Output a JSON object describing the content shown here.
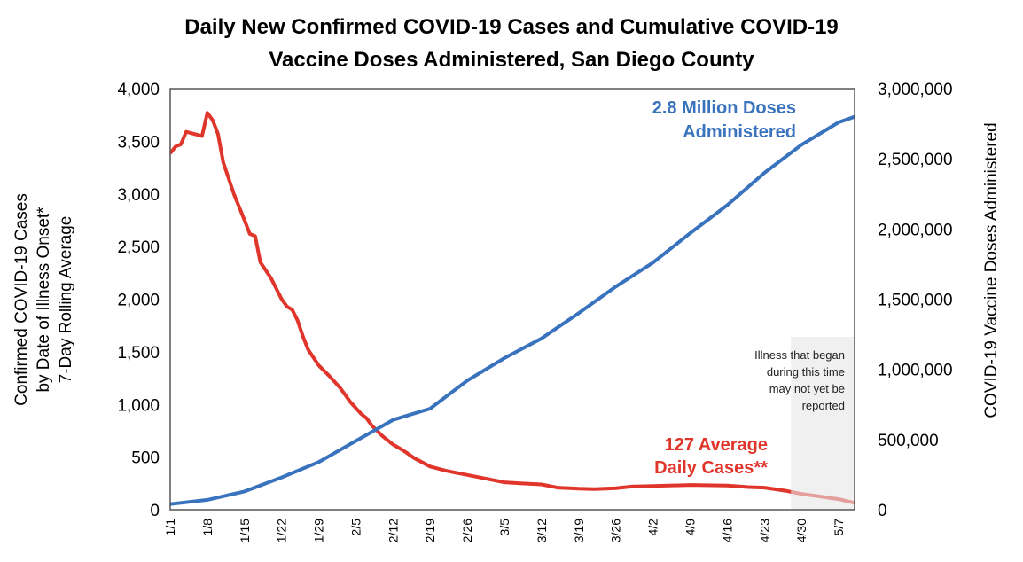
{
  "chart_data": {
    "type": "line",
    "title_lines": [
      "Daily New Confirmed COVID-19 Cases and Cumulative COVID-19",
      "Vaccine Doses Administered, San Diego County"
    ],
    "ylabel_left_lines": [
      "Confirmed COVID-19 Cases",
      "by Date of Illness Onset*",
      "7-Day Rolling Average"
    ],
    "ylabel_right": "COVID-19 Vaccine Doses Administered",
    "ylim_left": [
      0,
      4000
    ],
    "ylim_right": [
      0,
      3000000
    ],
    "yticks_left": [
      "0",
      "500",
      "1,000",
      "1,500",
      "2,000",
      "2,500",
      "3,000",
      "3,500",
      "4,000"
    ],
    "yticks_right": [
      "0",
      "500,000",
      "1,000,000",
      "1,500,000",
      "2,000,000",
      "2,500,000",
      "3,000,000"
    ],
    "xticks": [
      "1/1",
      "1/8",
      "1/15",
      "1/22",
      "1/29",
      "2/5",
      "2/12",
      "2/19",
      "2/26",
      "3/5",
      "3/12",
      "3/19",
      "3/26",
      "4/2",
      "4/9",
      "4/16",
      "4/23",
      "4/30",
      "5/7"
    ],
    "xlim": [
      "1/1",
      "5/10"
    ],
    "grid": false,
    "colors": {
      "cases": "#e0352b",
      "doses": "#3a73bd",
      "shade": "#e6e6e6"
    },
    "series": [
      {
        "key": "cases",
        "axis": "left",
        "x": [
          "1/1",
          "1/2",
          "1/3",
          "1/4",
          "1/7",
          "1/8",
          "1/9",
          "1/10",
          "1/11",
          "1/13",
          "1/15",
          "1/16",
          "1/17",
          "1/18",
          "1/20",
          "1/22",
          "1/23",
          "1/24",
          "1/25",
          "1/26",
          "1/27",
          "1/29",
          "1/31",
          "2/2",
          "2/4",
          "2/6",
          "2/7",
          "2/8",
          "2/10",
          "2/12",
          "2/14",
          "2/16",
          "2/19",
          "2/22",
          "2/26",
          "3/2",
          "3/5",
          "3/8",
          "3/12",
          "3/15",
          "3/19",
          "3/22",
          "3/26",
          "3/29",
          "4/2",
          "4/9",
          "4/16",
          "4/20",
          "4/23",
          "4/27",
          "4/30",
          "5/3",
          "5/7",
          "5/10"
        ],
        "values": [
          3385,
          3450,
          3470,
          3590,
          3550,
          3770,
          3700,
          3570,
          3300,
          3000,
          2750,
          2620,
          2600,
          2350,
          2200,
          2000,
          1930,
          1900,
          1800,
          1650,
          1520,
          1370,
          1270,
          1160,
          1020,
          910,
          870,
          800,
          700,
          620,
          560,
          490,
          410,
          370,
          330,
          290,
          260,
          250,
          240,
          210,
          200,
          195,
          205,
          220,
          225,
          235,
          230,
          215,
          210,
          180,
          150,
          130,
          100,
          65
        ]
      },
      {
        "key": "doses",
        "axis": "right",
        "x": [
          "1/1",
          "1/8",
          "1/15",
          "1/22",
          "1/29",
          "2/5",
          "2/12",
          "2/19",
          "2/26",
          "3/5",
          "3/12",
          "3/19",
          "3/26",
          "4/2",
          "4/9",
          "4/16",
          "4/23",
          "4/30",
          "5/7",
          "5/10"
        ],
        "values": [
          40000,
          70000,
          130000,
          230000,
          340000,
          490000,
          640000,
          720000,
          920000,
          1080000,
          1220000,
          1400000,
          1590000,
          1760000,
          1970000,
          2170000,
          2400000,
          2600000,
          2760000,
          2800000
        ]
      }
    ],
    "annotations": {
      "doses": [
        "2.8 Million Doses",
        "Administered"
      ],
      "cases": [
        "127 Average",
        "Daily Cases**"
      ],
      "shade": [
        "Illness that began",
        "during this time",
        "may not yet be",
        "reported"
      ]
    },
    "shade_range": [
      "4/28",
      "5/10"
    ]
  }
}
